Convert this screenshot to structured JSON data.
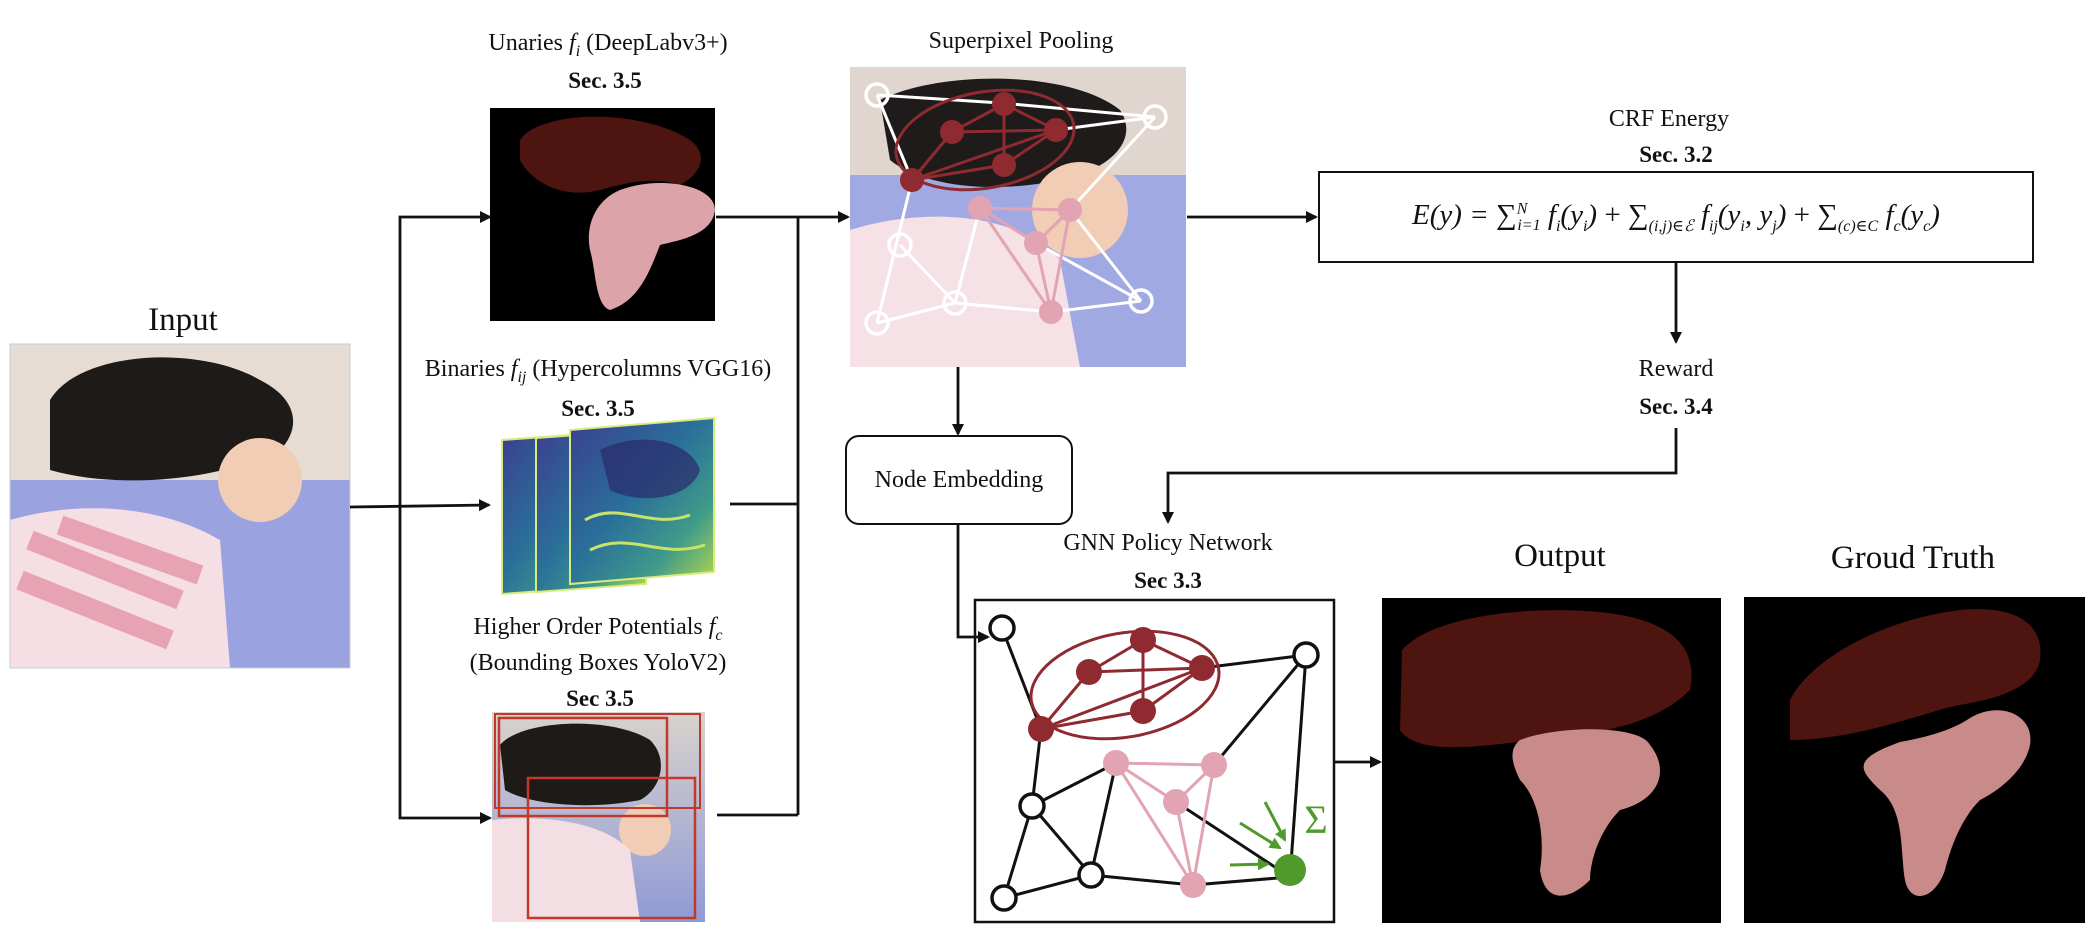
{
  "input": {
    "title": "Input"
  },
  "unaries": {
    "label_a": "Unaries ",
    "label_sym": "f",
    "label_sub": "i",
    "label_b": " (DeepLabv3+)",
    "sec": "Sec. 3.5"
  },
  "binaries": {
    "label_a": "Binaries ",
    "label_sym": "f",
    "label_sub": "ij",
    "label_b": " (Hypercolumns VGG16)",
    "sec": "Sec. 3.5"
  },
  "higher_order": {
    "label_a": "Higher Order Potentials ",
    "label_sym": "f",
    "label_sub": "c",
    "label_line2": "(Bounding Boxes YoloV2)",
    "sec": "Sec 3.5"
  },
  "superpixel": {
    "title": "Superpixel Pooling"
  },
  "node_embedding": {
    "label": "Node Embedding"
  },
  "crf": {
    "title": "CRF Energy",
    "sec": "Sec. 3.2"
  },
  "reward": {
    "title": "Reward",
    "sec": "Sec. 3.4"
  },
  "gnn": {
    "title": "GNN Policy Network",
    "sec": "Sec 3.3",
    "sum_symbol": "Σ"
  },
  "output": {
    "title": "Output"
  },
  "ground_truth": {
    "title": "Groud Truth"
  },
  "colors": {
    "dark_class": "#4d1410",
    "light_class": "#c98a8a",
    "node_dark": "#8e2a30",
    "node_light": "#e2a3b3",
    "node_sum": "#4f9a2a",
    "bbox": "#c0392b"
  }
}
